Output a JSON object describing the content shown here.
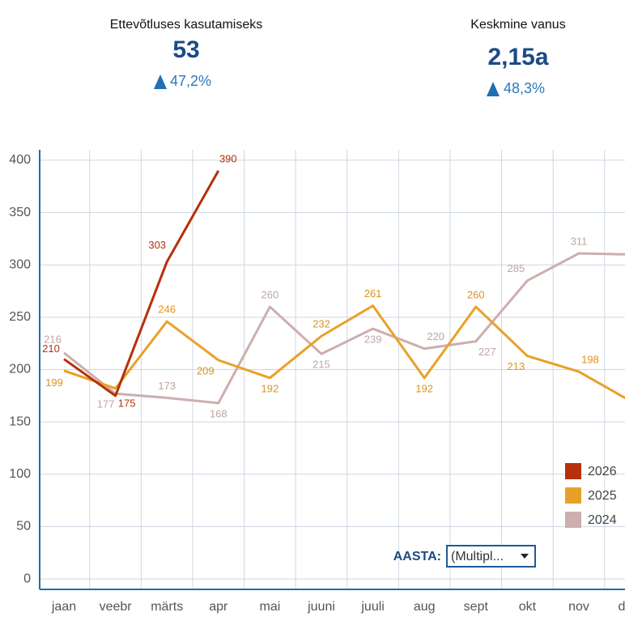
{
  "kpis": [
    {
      "title": "Ettevõtluses kasutamiseks",
      "value": "53",
      "delta": "47,2%"
    },
    {
      "title": "Keskmine vanus",
      "value": "2,15a",
      "delta": "48,3%"
    }
  ],
  "filter": {
    "label": "AASTA:",
    "value": "(Multipl..."
  },
  "chart_data": {
    "type": "line",
    "categories": [
      "jaan",
      "veebr",
      "märts",
      "apr",
      "mai",
      "juuni",
      "juuli",
      "aug",
      "sept",
      "okt",
      "nov",
      "dets"
    ],
    "series": [
      {
        "name": "2026",
        "color": "#b5300b",
        "values": [
          210,
          175,
          303,
          390,
          null,
          null,
          null,
          null,
          null,
          null,
          null,
          null
        ]
      },
      {
        "name": "2025",
        "color": "#e8a128",
        "values": [
          199,
          182,
          246,
          209,
          192,
          232,
          261,
          192,
          260,
          213,
          198,
          170
        ],
        "value_labels": [
          "199",
          null,
          "246",
          "209",
          "192",
          "232",
          "261",
          "192",
          "260",
          "213",
          "198",
          null
        ]
      },
      {
        "name": "2024",
        "color": "#cdaeae",
        "values": [
          216,
          177,
          173,
          168,
          260,
          215,
          239,
          220,
          227,
          285,
          311,
          310
        ],
        "value_labels": [
          "216",
          "177",
          "173",
          "168",
          "260",
          "215",
          "239",
          "220",
          "227",
          "285",
          "311",
          null
        ]
      }
    ],
    "ylim": [
      -10,
      410
    ],
    "yticks": [
      0,
      50,
      100,
      150,
      200,
      250,
      300,
      350,
      400
    ],
    "grid": true,
    "legend": "lower right"
  }
}
